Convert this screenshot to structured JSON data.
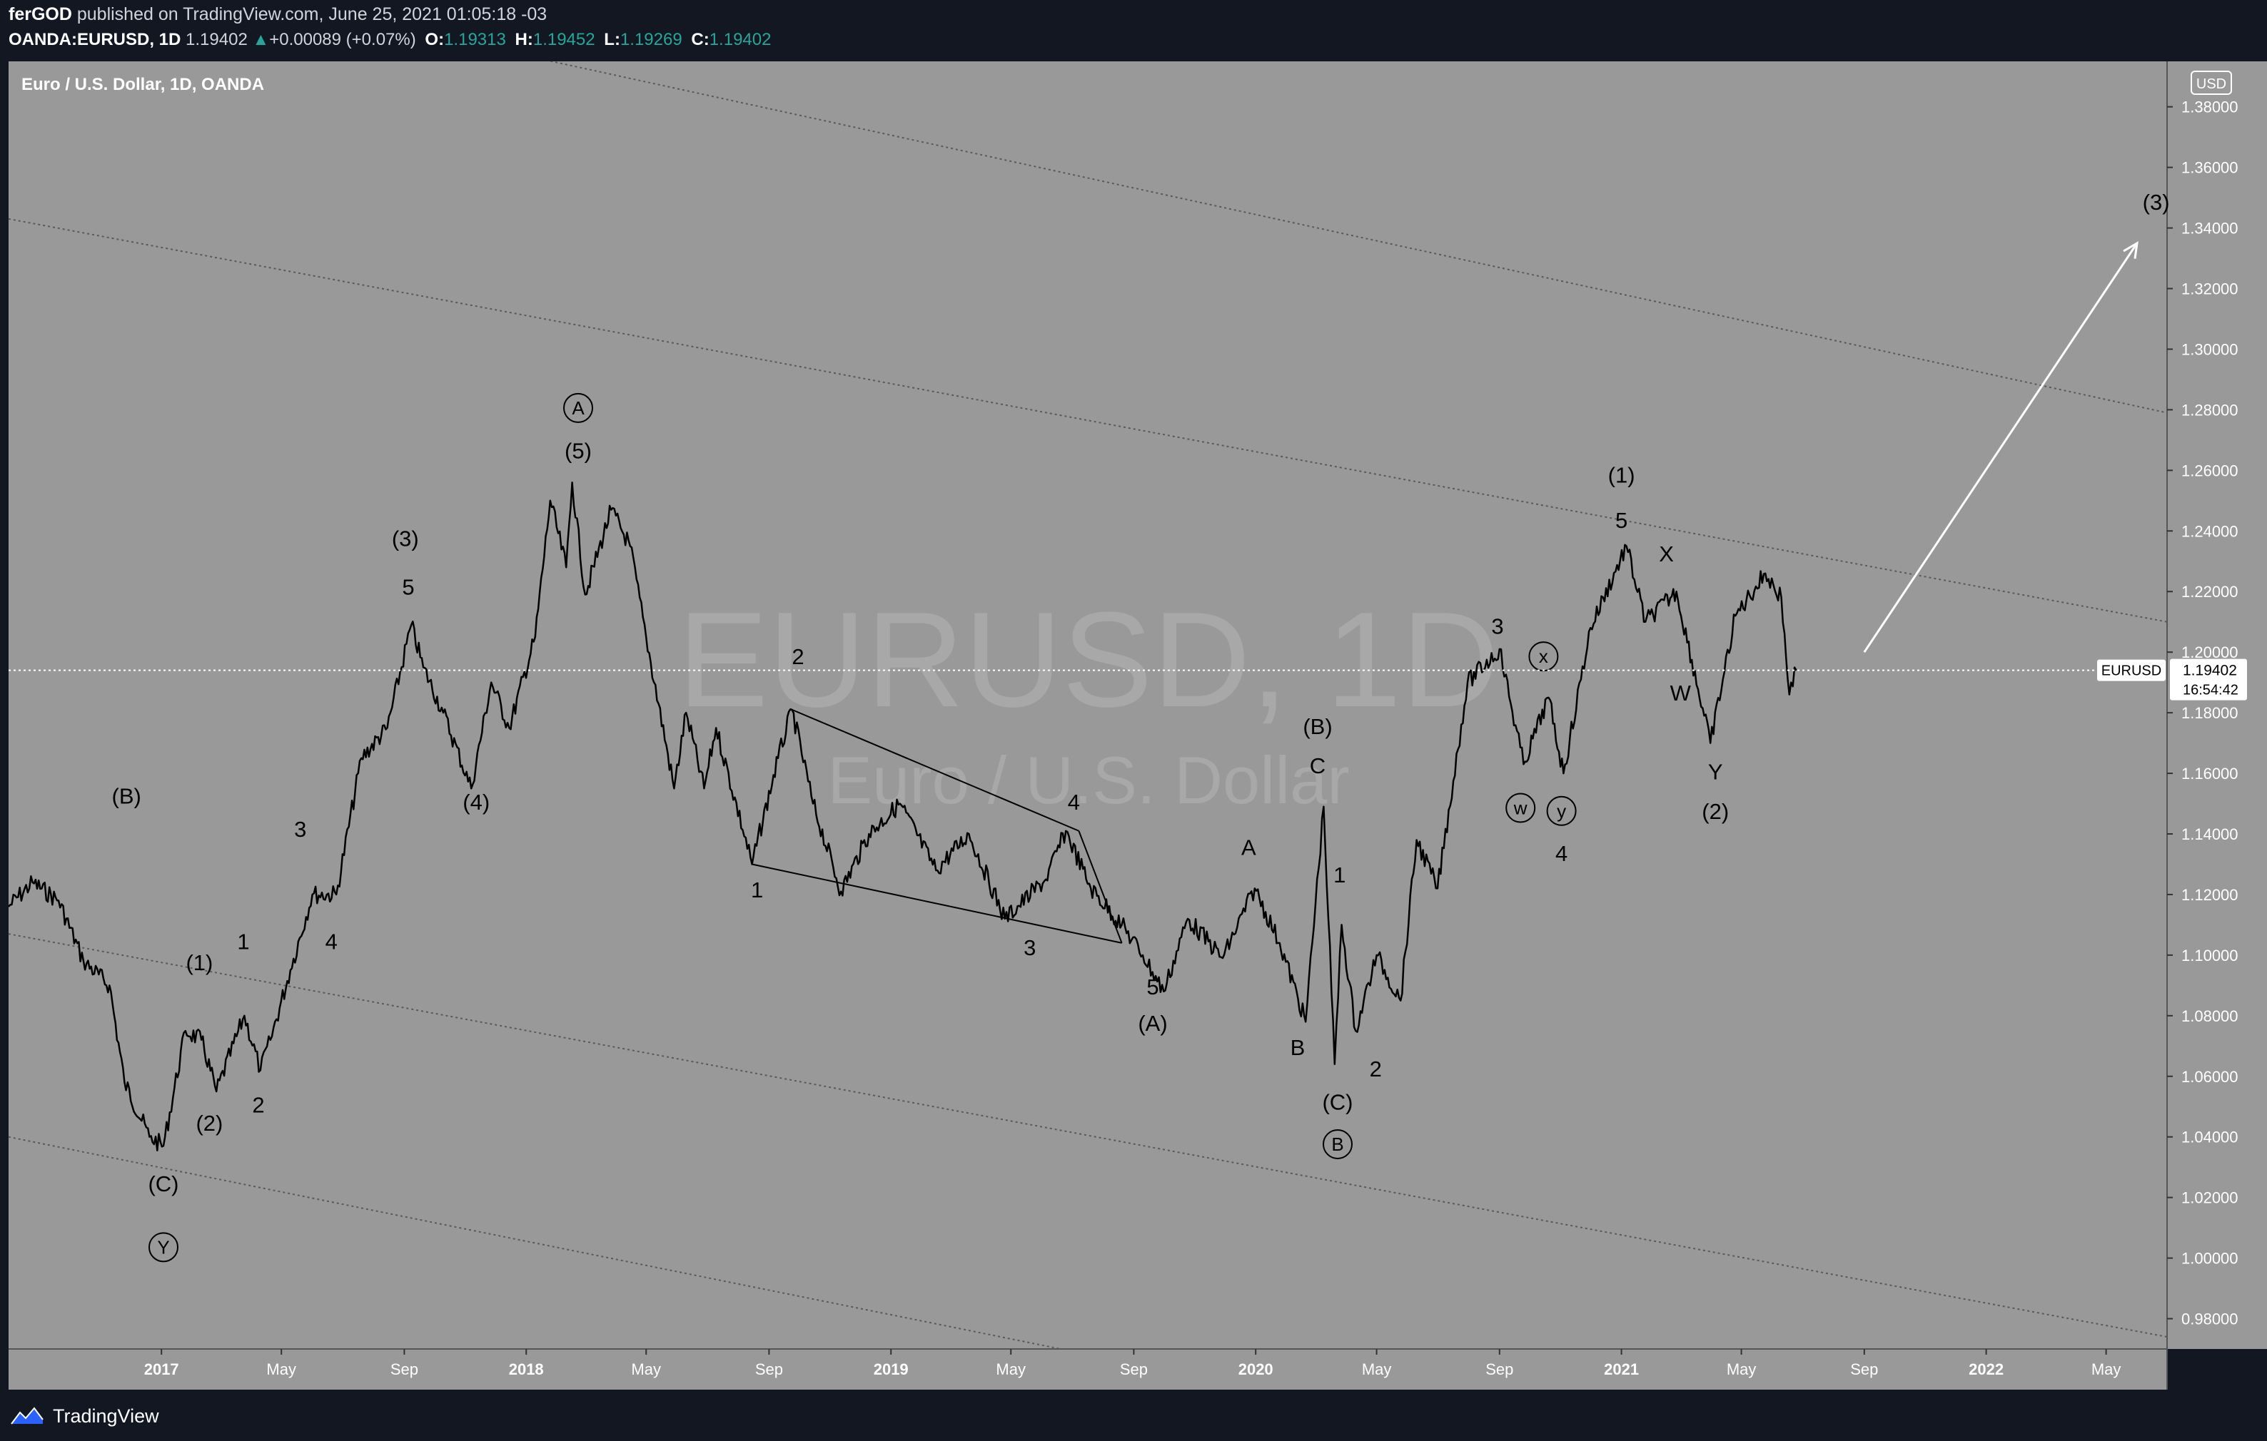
{
  "header": {
    "author": "ferGOD",
    "published": " published on TradingView.com, June 25, 2021 01:05:18 -03",
    "symbol": "OANDA:EURUSD, 1D",
    "last": "1.19402",
    "change_arrow": "▲",
    "change": "+0.00089 (+0.07%)",
    "o_label": "O:",
    "o_value": "1.19313",
    "h_label": "H:",
    "h_value": "1.19452",
    "l_label": "L:",
    "l_value": "1.19269",
    "c_label": "C:",
    "c_value": "1.19402"
  },
  "footer": {
    "brand": "TradingView",
    "logo_icon": "tradingview-logo-icon"
  },
  "chart_data": {
    "type": "line",
    "title": "Euro / U.S. Dollar, 1D, OANDA",
    "watermark_main": "EURUSD, 1D",
    "watermark_sub": "Euro / U.S. Dollar",
    "currency_badge": "USD",
    "ylim": [
      0.97,
      1.395
    ],
    "yticks": [
      "1.38000",
      "1.36000",
      "1.34000",
      "1.32000",
      "1.30000",
      "1.28000",
      "1.26000",
      "1.24000",
      "1.22000",
      "1.20000",
      "1.18000",
      "1.16000",
      "1.14000",
      "1.12000",
      "1.10000",
      "1.08000",
      "1.06000",
      "1.04000",
      "1.02000",
      "1.00000",
      "0.98000"
    ],
    "xlim": [
      "2016-08-01",
      "2022-07-01"
    ],
    "xticks": [
      {
        "date": "2017-01-01",
        "label": "2017",
        "bold": true
      },
      {
        "date": "2017-05-01",
        "label": "May"
      },
      {
        "date": "2017-09-01",
        "label": "Sep"
      },
      {
        "date": "2018-01-01",
        "label": "2018",
        "bold": true
      },
      {
        "date": "2018-05-01",
        "label": "May"
      },
      {
        "date": "2018-09-01",
        "label": "Sep"
      },
      {
        "date": "2019-01-01",
        "label": "2019",
        "bold": true
      },
      {
        "date": "2019-05-01",
        "label": "May"
      },
      {
        "date": "2019-09-01",
        "label": "Sep"
      },
      {
        "date": "2020-01-01",
        "label": "2020",
        "bold": true
      },
      {
        "date": "2020-05-01",
        "label": "May"
      },
      {
        "date": "2020-09-01",
        "label": "Sep"
      },
      {
        "date": "2021-01-01",
        "label": "2021",
        "bold": true
      },
      {
        "date": "2021-05-01",
        "label": "May"
      },
      {
        "date": "2021-09-01",
        "label": "Sep"
      },
      {
        "date": "2022-01-01",
        "label": "2022",
        "bold": true
      },
      {
        "date": "2022-05-01",
        "label": "May"
      }
    ],
    "series": [
      {
        "values": [
          [
            "2016-08-01",
            1.116
          ],
          [
            "2016-08-25",
            1.124
          ],
          [
            "2016-09-20",
            1.118
          ],
          [
            "2016-10-15",
            1.098
          ],
          [
            "2016-11-10",
            1.09
          ],
          [
            "2016-11-25",
            1.058
          ],
          [
            "2016-12-20",
            1.04
          ],
          [
            "2017-01-03",
            1.037
          ],
          [
            "2017-01-25",
            1.075
          ],
          [
            "2017-02-10",
            1.072
          ],
          [
            "2017-02-25",
            1.055
          ],
          [
            "2017-03-25",
            1.08
          ],
          [
            "2017-04-10",
            1.062
          ],
          [
            "2017-04-20",
            1.072
          ],
          [
            "2017-05-10",
            1.095
          ],
          [
            "2017-06-01",
            1.12
          ],
          [
            "2017-06-25",
            1.12
          ],
          [
            "2017-07-20",
            1.165
          ],
          [
            "2017-08-15",
            1.175
          ],
          [
            "2017-09-08",
            1.209
          ],
          [
            "2017-09-20",
            1.195
          ],
          [
            "2017-10-10",
            1.18
          ],
          [
            "2017-11-07",
            1.155
          ],
          [
            "2017-11-27",
            1.19
          ],
          [
            "2017-12-15",
            1.175
          ],
          [
            "2018-01-10",
            1.205
          ],
          [
            "2018-01-25",
            1.25
          ],
          [
            "2018-02-10",
            1.228
          ],
          [
            "2018-02-16",
            1.256
          ],
          [
            "2018-03-01",
            1.219
          ],
          [
            "2018-03-27",
            1.247
          ],
          [
            "2018-04-15",
            1.235
          ],
          [
            "2018-05-01",
            1.205
          ],
          [
            "2018-05-29",
            1.155
          ],
          [
            "2018-06-10",
            1.18
          ],
          [
            "2018-06-28",
            1.155
          ],
          [
            "2018-07-10",
            1.175
          ],
          [
            "2018-08-15",
            1.13
          ],
          [
            "2018-09-10",
            1.165
          ],
          [
            "2018-09-24",
            1.181
          ],
          [
            "2018-10-15",
            1.15
          ],
          [
            "2018-11-12",
            1.121
          ],
          [
            "2018-12-10",
            1.14
          ],
          [
            "2019-01-10",
            1.15
          ],
          [
            "2019-02-15",
            1.128
          ],
          [
            "2019-03-20",
            1.14
          ],
          [
            "2019-04-25",
            1.112
          ],
          [
            "2019-06-05",
            1.125
          ],
          [
            "2019-06-25",
            1.141
          ],
          [
            "2019-07-20",
            1.122
          ],
          [
            "2019-08-20",
            1.11
          ],
          [
            "2019-09-10",
            1.1
          ],
          [
            "2019-10-01",
            1.088
          ],
          [
            "2019-10-25",
            1.112
          ],
          [
            "2019-11-29",
            1.099
          ],
          [
            "2019-12-31",
            1.122
          ],
          [
            "2020-01-25",
            1.104
          ],
          [
            "2020-02-20",
            1.078
          ],
          [
            "2020-03-09",
            1.149
          ],
          [
            "2020-03-20",
            1.064
          ],
          [
            "2020-03-27",
            1.11
          ],
          [
            "2020-04-10",
            1.075
          ],
          [
            "2020-05-01",
            1.1
          ],
          [
            "2020-05-25",
            1.085
          ],
          [
            "2020-06-10",
            1.138
          ],
          [
            "2020-07-01",
            1.122
          ],
          [
            "2020-07-31",
            1.19
          ],
          [
            "2020-09-01",
            1.201
          ],
          [
            "2020-09-25",
            1.163
          ],
          [
            "2020-10-20",
            1.185
          ],
          [
            "2020-11-04",
            1.16
          ],
          [
            "2020-12-01",
            1.208
          ],
          [
            "2021-01-06",
            1.235
          ],
          [
            "2021-01-25",
            1.21
          ],
          [
            "2021-02-25",
            1.22
          ],
          [
            "2021-03-31",
            1.17
          ],
          [
            "2021-04-25",
            1.212
          ],
          [
            "2021-05-25",
            1.226
          ],
          [
            "2021-06-10",
            1.218
          ],
          [
            "2021-06-18",
            1.186
          ],
          [
            "2021-06-25",
            1.194
          ]
        ]
      }
    ],
    "last_price": {
      "symbol_label": "EURUSD",
      "value": "1.19402",
      "countdown": "16:54:42",
      "value_num": 1.19402
    },
    "channel_lines": [
      {
        "from": [
          "2016-08-01",
          1.434
        ],
        "to": [
          "2022-07-01",
          1.279
        ]
      },
      {
        "from": [
          "2016-08-01",
          1.343
        ],
        "to": [
          "2022-07-01",
          1.21
        ]
      },
      {
        "from": [
          "2016-08-01",
          1.107
        ],
        "to": [
          "2022-07-01",
          0.974
        ]
      },
      {
        "from": [
          "2016-08-01",
          1.04
        ],
        "to": [
          "2019-06-20",
          0.97
        ]
      }
    ],
    "triangle": [
      {
        "from": [
          "2018-09-24",
          1.181
        ],
        "to": [
          "2019-07-08",
          1.141
        ]
      },
      {
        "from": [
          "2018-08-15",
          1.13
        ],
        "to": [
          "2019-08-20",
          1.104
        ]
      },
      {
        "from": [
          "2019-07-08",
          1.141
        ],
        "to": [
          "2019-08-20",
          1.104
        ]
      }
    ],
    "arrow": {
      "from": [
        "2021-09-01",
        1.2
      ],
      "to": [
        "2022-06-01",
        1.335
      ]
    },
    "annotations": [
      {
        "text": "(B)",
        "date": "2016-11-27",
        "price": 1.15,
        "circled": false
      },
      {
        "text": "(1)",
        "date": "2017-02-08",
        "price": 1.095,
        "circled": false
      },
      {
        "text": "1",
        "date": "2017-03-24",
        "price": 1.102,
        "circled": false
      },
      {
        "text": "(2)",
        "date": "2017-02-18",
        "price": 1.042,
        "circled": false
      },
      {
        "text": "2",
        "date": "2017-04-08",
        "price": 1.048,
        "circled": false
      },
      {
        "text": "(C)",
        "date": "2017-01-03",
        "price": 1.022,
        "circled": false
      },
      {
        "text": "Y",
        "date": "2017-01-03",
        "price": 1.001,
        "circled": true
      },
      {
        "text": "3",
        "date": "2017-05-20",
        "price": 1.139,
        "circled": false
      },
      {
        "text": "4",
        "date": "2017-06-20",
        "price": 1.102,
        "circled": false
      },
      {
        "text": "(3)",
        "date": "2017-09-02",
        "price": 1.235,
        "circled": false
      },
      {
        "text": "5",
        "date": "2017-09-05",
        "price": 1.219,
        "circled": false
      },
      {
        "text": "(4)",
        "date": "2017-11-12",
        "price": 1.148,
        "circled": false
      },
      {
        "text": "A",
        "date": "2018-02-22",
        "price": 1.278,
        "circled": true
      },
      {
        "text": "(5)",
        "date": "2018-02-22",
        "price": 1.264,
        "circled": false
      },
      {
        "text": "2",
        "date": "2018-09-30",
        "price": 1.196,
        "circled": false
      },
      {
        "text": "1",
        "date": "2018-08-20",
        "price": 1.119,
        "circled": false
      },
      {
        "text": "3",
        "date": "2019-05-20",
        "price": 1.1,
        "circled": false
      },
      {
        "text": "4",
        "date": "2019-07-03",
        "price": 1.148,
        "circled": false
      },
      {
        "text": "5",
        "date": "2019-09-20",
        "price": 1.087,
        "circled": false
      },
      {
        "text": "(A)",
        "date": "2019-09-20",
        "price": 1.075,
        "circled": false
      },
      {
        "text": "A",
        "date": "2019-12-25",
        "price": 1.133,
        "circled": false
      },
      {
        "text": "B",
        "date": "2020-02-12",
        "price": 1.067,
        "circled": false
      },
      {
        "text": "(B)",
        "date": "2020-03-03",
        "price": 1.173,
        "circled": false
      },
      {
        "text": "C",
        "date": "2020-03-03",
        "price": 1.16,
        "circled": false
      },
      {
        "text": "1",
        "date": "2020-03-25",
        "price": 1.124,
        "circled": false
      },
      {
        "text": "2",
        "date": "2020-04-30",
        "price": 1.06,
        "circled": false
      },
      {
        "text": "(C)",
        "date": "2020-03-23",
        "price": 1.049,
        "circled": false
      },
      {
        "text": "B",
        "date": "2020-03-23",
        "price": 1.035,
        "circled": true
      },
      {
        "text": "3",
        "date": "2020-08-30",
        "price": 1.206,
        "circled": false
      },
      {
        "text": "x",
        "date": "2020-10-15",
        "price": 1.196,
        "circled": true
      },
      {
        "text": "w",
        "date": "2020-09-22",
        "price": 1.146,
        "circled": true
      },
      {
        "text": "y",
        "date": "2020-11-02",
        "price": 1.145,
        "circled": true
      },
      {
        "text": "4",
        "date": "2020-11-02",
        "price": 1.131,
        "circled": false
      },
      {
        "text": "(1)",
        "date": "2021-01-01",
        "price": 1.256,
        "circled": false
      },
      {
        "text": "5",
        "date": "2021-01-01",
        "price": 1.241,
        "circled": false
      },
      {
        "text": "X",
        "date": "2021-02-15",
        "price": 1.23,
        "circled": false
      },
      {
        "text": "W",
        "date": "2021-03-01",
        "price": 1.184,
        "circled": false
      },
      {
        "text": "Y",
        "date": "2021-04-05",
        "price": 1.158,
        "circled": false
      },
      {
        "text": "(2)",
        "date": "2021-04-05",
        "price": 1.145,
        "circled": false
      },
      {
        "text": "(3)",
        "date": "2022-06-20",
        "price": 1.346,
        "circled": false
      }
    ]
  }
}
